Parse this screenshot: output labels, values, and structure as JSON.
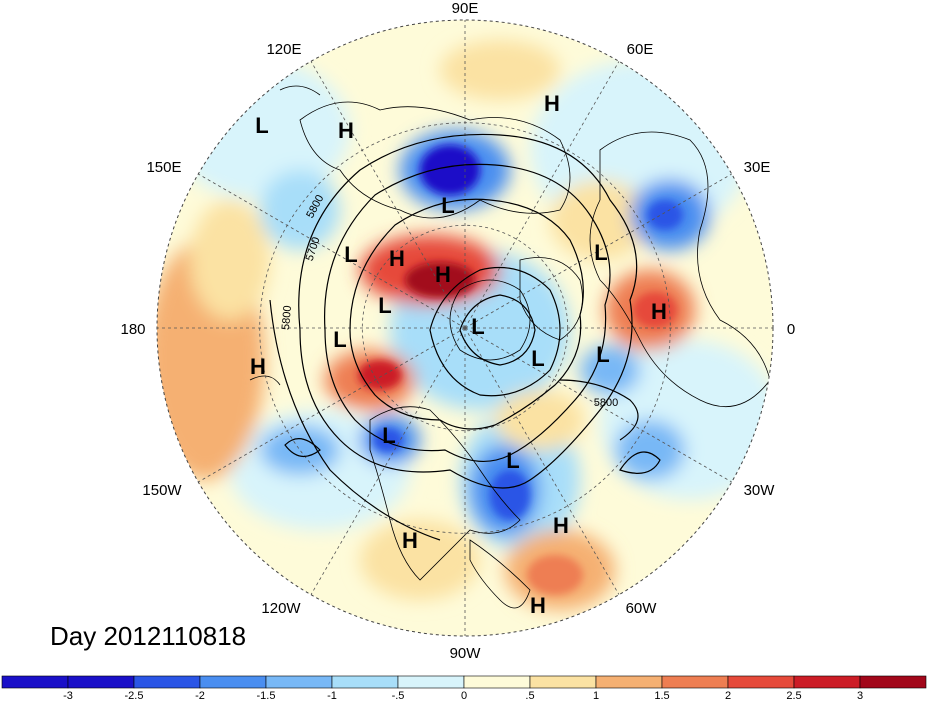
{
  "title": "Day 2012110818",
  "longitude_labels": [
    "90E",
    "60E",
    "30E",
    "0",
    "30W",
    "60W",
    "90W",
    "120W",
    "150W",
    "180",
    "150E",
    "120E"
  ],
  "contour_labels": [
    "5800",
    "5700",
    "5800",
    "5800"
  ],
  "pressure_centers": [
    "L",
    "H",
    "H",
    "L",
    "L",
    "H",
    "H",
    "L",
    "L",
    "H",
    "L",
    "L",
    "H",
    "L",
    "L",
    "L",
    "H",
    "H",
    "L",
    "H"
  ],
  "colorbar": {
    "ticks": [
      "-3",
      "-2.5",
      "-2",
      "-1.5",
      "-1",
      "-.5",
      "0",
      ".5",
      "1",
      "1.5",
      "2",
      "2.5",
      "3"
    ],
    "colors": [
      "#1a10c8",
      "#2a55e6",
      "#4a8ef0",
      "#78b8f6",
      "#a8def9",
      "#d8f4fb",
      "#fefbd9",
      "#fbe2a3",
      "#f5b072",
      "#ee7e52",
      "#e64a3a",
      "#cc1c26",
      "#a2071a"
    ]
  }
}
